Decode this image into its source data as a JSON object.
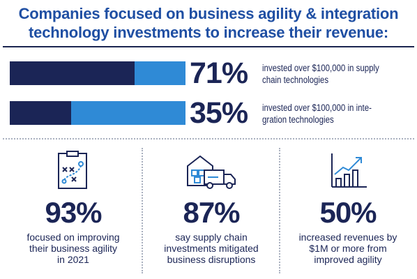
{
  "title": {
    "line1": "Companies focused on business agility & integration",
    "line2": "technology investments to increase their revenue:"
  },
  "colors": {
    "dark_navy": "#1b2556",
    "bright_blue": "#2f8ad6",
    "title_blue": "#1f4fa3"
  },
  "chart_data": [
    {
      "type": "bar",
      "orientation": "horizontal",
      "categories": [
        "invested over $100,000 in supply chain technologies",
        "invested over $100,000 in integration technologies"
      ],
      "values": [
        71,
        35
      ],
      "value_labels": [
        "71%",
        "35%"
      ],
      "unit": "%",
      "xlim": [
        0,
        100
      ],
      "grid": false,
      "desc_lines": [
        [
          "invested over $100,000 in supply",
          "chain technologies"
        ],
        [
          "invested over $100,000 in inte-",
          "gration technologies"
        ]
      ]
    }
  ],
  "stats": [
    {
      "icon": "strategy-clipboard-icon",
      "value": "93%",
      "lines": [
        "focused on improving",
        "their business agility",
        "in 2021"
      ]
    },
    {
      "icon": "warehouse-truck-icon",
      "value": "87%",
      "lines": [
        "say supply chain",
        "investments mitigated",
        "business disruptions"
      ]
    },
    {
      "icon": "growth-chart-icon",
      "value": "50%",
      "lines": [
        "increased revenues by",
        "$1M or more from",
        "improved agility"
      ]
    }
  ]
}
